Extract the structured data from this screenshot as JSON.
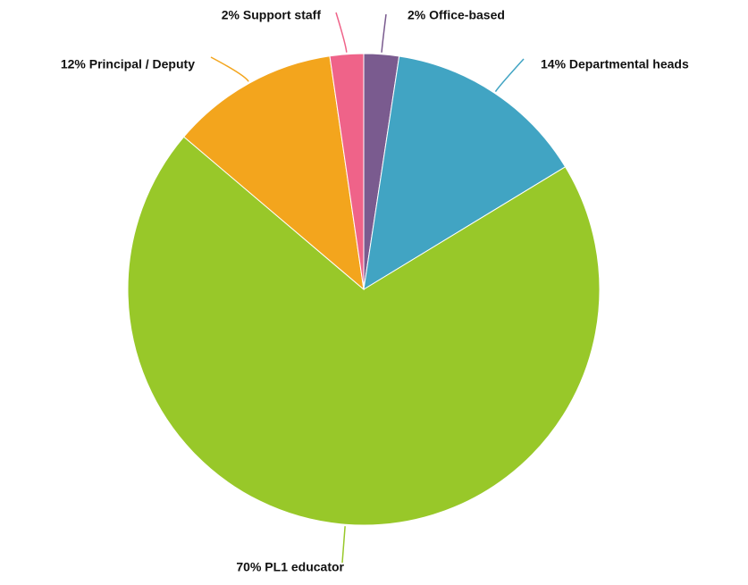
{
  "chart_data": {
    "type": "pie",
    "title": "",
    "slices": [
      {
        "label": "Office-based",
        "percent_label": "2%",
        "value": 2.4,
        "color": "#7a5b8f"
      },
      {
        "label": "Departmental heads",
        "percent_label": "14%",
        "value": 13.9,
        "color": "#41a4c3"
      },
      {
        "label": "PL1 educator",
        "percent_label": "70%",
        "value": 69.9,
        "color": "#98c829"
      },
      {
        "label": "Principal / Deputy",
        "percent_label": "12%",
        "value": 11.5,
        "color": "#f3a51d"
      },
      {
        "label": "Support staff",
        "percent_label": "2%",
        "value": 2.3,
        "color": "#ef6389"
      }
    ],
    "start_angle": "12 o'clock",
    "direction": "clockwise",
    "legend": "none (labels drawn beside slices)"
  }
}
